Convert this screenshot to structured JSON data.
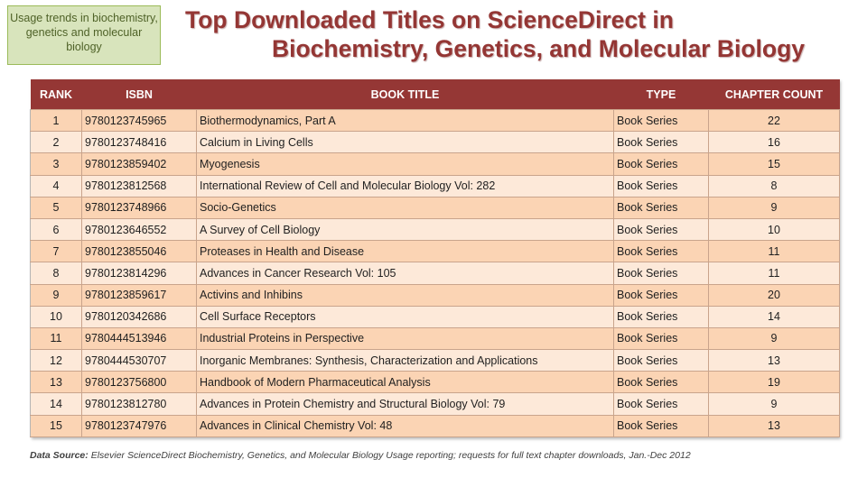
{
  "tag": "Usage trends in biochemistry, genetics and molecular biology",
  "title": {
    "line1": "Top Downloaded Titles on ScienceDirect in",
    "line2": "Biochemistry, Genetics, and Molecular Biology"
  },
  "table": {
    "headers": [
      "RANK",
      "ISBN",
      "BOOK TITLE",
      "TYPE",
      "CHAPTER COUNT"
    ],
    "rows": [
      [
        "1",
        "9780123745965",
        "Biothermodynamics, Part A",
        "Book Series",
        "22"
      ],
      [
        "2",
        "9780123748416",
        "Calcium in Living Cells",
        "Book Series",
        "16"
      ],
      [
        "3",
        "9780123859402",
        "Myogenesis",
        "Book Series",
        "15"
      ],
      [
        "4",
        "9780123812568",
        "International Review of Cell and Molecular Biology Vol: 282",
        "Book Series",
        "8"
      ],
      [
        "5",
        "9780123748966",
        "Socio-Genetics",
        "Book Series",
        "9"
      ],
      [
        "6",
        "9780123646552",
        "A Survey of Cell Biology",
        "Book Series",
        "10"
      ],
      [
        "7",
        "9780123855046",
        "Proteases in Health and Disease",
        "Book Series",
        "11"
      ],
      [
        "8",
        "9780123814296",
        "Advances in Cancer Research Vol: 105",
        "Book Series",
        "11"
      ],
      [
        "9",
        "9780123859617",
        "Activins and Inhibins",
        "Book Series",
        "20"
      ],
      [
        "10",
        "9780120342686",
        "Cell Surface Receptors",
        "Book Series",
        "14"
      ],
      [
        "11",
        "9780444513946",
        "Industrial Proteins in Perspective",
        "Book Series",
        "9"
      ],
      [
        "12",
        "9780444530707",
        "Inorganic Membranes: Synthesis, Characterization and Applications",
        "Book Series",
        "13"
      ],
      [
        "13",
        "9780123756800",
        "Handbook of Modern Pharmaceutical Analysis",
        "Book Series",
        "19"
      ],
      [
        "14",
        "9780123812780",
        "Advances in Protein Chemistry and Structural Biology Vol: 79",
        "Book Series",
        "9"
      ],
      [
        "15",
        "9780123747976",
        "Advances in Clinical Chemistry Vol: 48",
        "Book Series",
        "13"
      ]
    ]
  },
  "source": {
    "label": "Data Source:",
    "text": " Elsevier ScienceDirect Biochemistry, Genetics, and Molecular Biology Usage reporting; requests for full text chapter downloads, Jan.-Dec 2012"
  }
}
